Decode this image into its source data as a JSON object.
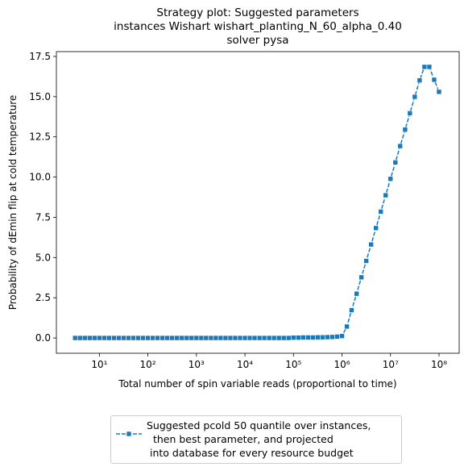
{
  "chart_data": {
    "type": "line",
    "title": "Strategy plot: Suggested parameters\ninstances Wishart wishart_planting_N_60_alpha_0.40\nsolver pysa",
    "xlabel": "Total number of spin variable reads (proportional to time)",
    "ylabel": "Probability of dEmin flip at cold temperature",
    "xscale": "log",
    "x": [
      3.16,
      3.98,
      5.01,
      6.31,
      7.94,
      10,
      12.6,
      15.8,
      20,
      25.1,
      31.6,
      39.8,
      50.1,
      63.1,
      79.4,
      100,
      126,
      158,
      200,
      251,
      316,
      398,
      501,
      631,
      794,
      1000,
      1260,
      1580,
      2000,
      2510,
      3160,
      3980,
      5010,
      6310,
      7940,
      10000.0,
      12600.0,
      15800.0,
      20000.0,
      25100.0,
      31600.0,
      39800.0,
      50100.0,
      63100.0,
      79400.0,
      100000.0,
      126000.0,
      158000.0,
      200000.0,
      251000.0,
      316000.0,
      398000.0,
      501000.0,
      631000.0,
      794000.0,
      1000000.0,
      1260000.0,
      1580000.0,
      2000000.0,
      2510000.0,
      3160000.0,
      3980000.0,
      5010000.0,
      6310000.0,
      7940000.0,
      10000000.0,
      12600000.0,
      15800000.0,
      20000000.0,
      25100000.0,
      31600000.0,
      39800000.0,
      50100000.0,
      63100000.0,
      79400000.0,
      100000000.0
    ],
    "series": [
      {
        "name": "Suggested pcold 50 quantile over instances,\n  then best parameter, and projected\n into database for every resource budget",
        "color": "#1f77b4",
        "linestyle": "dashed",
        "marker": "square",
        "values": [
          0,
          0,
          0,
          0,
          0,
          0,
          0,
          0,
          0,
          0,
          0,
          0,
          0,
          0,
          0,
          0,
          0,
          0,
          0,
          0,
          0,
          0,
          0,
          0,
          0,
          0,
          0,
          0,
          0,
          0,
          0,
          0,
          0,
          0,
          0,
          0,
          0,
          0,
          0,
          0,
          0,
          0,
          0,
          0,
          0,
          0.02,
          0.02,
          0.03,
          0.03,
          0.03,
          0.04,
          0.04,
          0.05,
          0.06,
          0.08,
          0.12,
          0.71,
          1.73,
          2.75,
          3.77,
          4.79,
          5.81,
          6.83,
          7.85,
          8.87,
          9.89,
          10.91,
          11.93,
          12.95,
          13.97,
          14.99,
          16.01,
          16.85,
          16.85,
          16.05,
          15.3
        ]
      }
    ],
    "xlim": [
      1.3,
      260000000.0
    ],
    "xticks": [
      {
        "value": 10,
        "label": "10¹"
      },
      {
        "value": 100,
        "label": "10²"
      },
      {
        "value": 1000,
        "label": "10³"
      },
      {
        "value": 10000,
        "label": "10⁴"
      },
      {
        "value": 100000,
        "label": "10⁵"
      },
      {
        "value": 1000000,
        "label": "10⁶"
      },
      {
        "value": 10000000,
        "label": "10⁷"
      },
      {
        "value": 100000000,
        "label": "10⁸"
      }
    ],
    "ylim": [
      -0.95,
      17.8
    ],
    "yticks": [
      {
        "value": 0,
        "label": "0.0"
      },
      2.5,
      {
        "value": 5,
        "label": "5.0"
      },
      7.5,
      {
        "value": 10,
        "label": "10.0"
      },
      12.5,
      {
        "value": 15,
        "label": "15.0"
      },
      17.5
    ],
    "legend": "lower center"
  }
}
